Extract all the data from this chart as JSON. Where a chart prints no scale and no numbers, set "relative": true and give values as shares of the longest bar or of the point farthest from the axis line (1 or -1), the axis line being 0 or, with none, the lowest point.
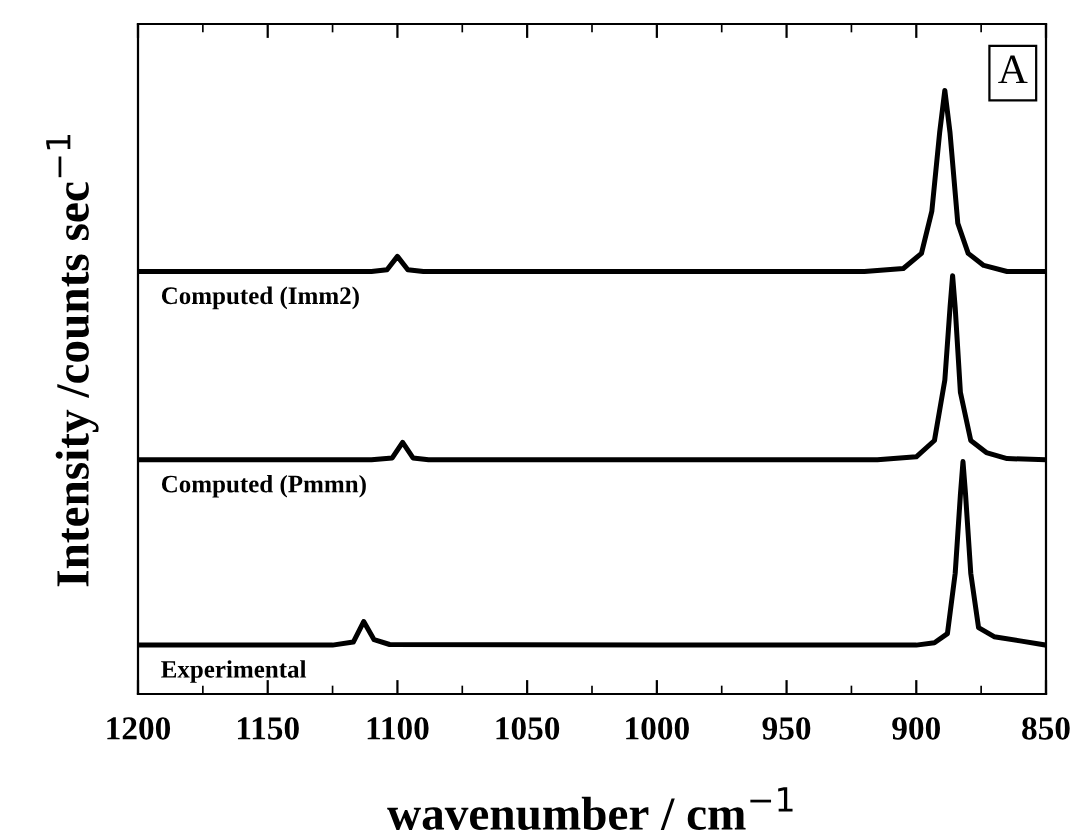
{
  "chart_data": {
    "type": "line",
    "relative": true,
    "xlabel": "wavenumber / cm$^{−1}$",
    "ylabel": "Intensity /counts sec$^{−1}$",
    "annotations": [
      "A"
    ],
    "xlim": [
      1200,
      850
    ],
    "xticks": [
      1200,
      1150,
      1100,
      1050,
      1000,
      950,
      900,
      850
    ],
    "grid": false,
    "legend": false,
    "marker": "none",
    "line_style": "solid",
    "series": [
      {
        "name": "Computed (Imm2)",
        "color": "#000000",
        "x": [
          1200,
          1160,
          1110,
          1104,
          1100,
          1096,
          1090,
          1050,
          1000,
          920,
          905,
          898,
          894,
          891,
          889,
          887,
          884,
          880,
          874,
          865,
          850
        ],
        "values": [
          0.7,
          0.7,
          0.7,
          0.703,
          0.725,
          0.703,
          0.7,
          0.7,
          0.7,
          0.7,
          0.705,
          0.73,
          0.8,
          0.93,
          1.0,
          0.93,
          0.78,
          0.73,
          0.71,
          0.7,
          0.7
        ]
      },
      {
        "name": "Computed (Pmmn)",
        "color": "#000000",
        "x": [
          1200,
          1110,
          1102,
          1098,
          1094,
          1088,
          1000,
          915,
          900,
          893,
          889,
          887,
          886,
          885,
          883,
          879,
          873,
          865,
          850
        ],
        "values": [
          0.388,
          0.388,
          0.391,
          0.417,
          0.391,
          0.388,
          0.388,
          0.388,
          0.393,
          0.42,
          0.52,
          0.64,
          0.693,
          0.64,
          0.5,
          0.42,
          0.4,
          0.39,
          0.388
        ]
      },
      {
        "name": "Experimental",
        "color": "#000000",
        "x": [
          1200,
          1125,
          1117,
          1113,
          1109,
          1103,
          1000,
          900,
          893,
          888,
          885,
          883,
          882,
          881,
          879,
          876,
          870,
          860,
          850
        ],
        "values": [
          0.081,
          0.081,
          0.086,
          0.12,
          0.09,
          0.082,
          0.081,
          0.081,
          0.085,
          0.1,
          0.2,
          0.33,
          0.385,
          0.33,
          0.2,
          0.11,
          0.095,
          0.088,
          0.081
        ]
      }
    ]
  }
}
